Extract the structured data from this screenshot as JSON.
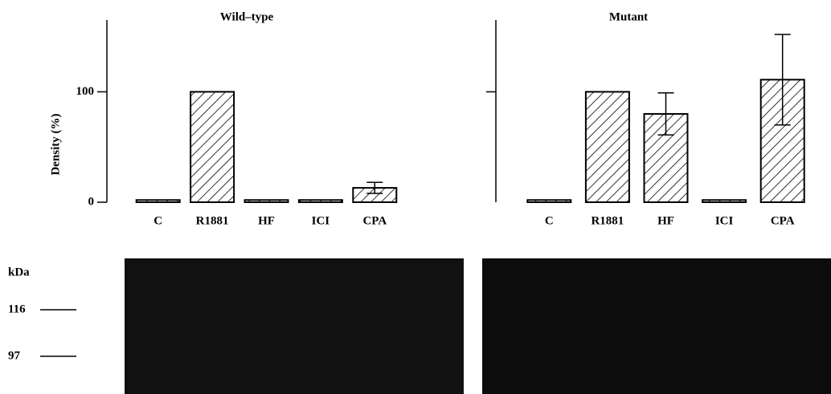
{
  "chart_data": [
    {
      "type": "bar",
      "title": "Wild–type",
      "y_label": "Density (%)",
      "categories": [
        "C",
        "R1881",
        "HF",
        "ICI",
        "CPA"
      ],
      "values": [
        2,
        100,
        2,
        2,
        13
      ],
      "errors": [
        null,
        null,
        null,
        null,
        5
      ],
      "color": "#000000",
      "ylim": [
        0,
        165
      ],
      "yticks": [
        0,
        100
      ],
      "show_ytick_labels": true
    },
    {
      "type": "bar",
      "title": "Mutant",
      "categories": [
        "C",
        "R1881",
        "HF",
        "ICI",
        "CPA"
      ],
      "values": [
        2,
        100,
        80,
        2,
        111
      ],
      "errors": [
        null,
        null,
        19,
        null,
        41
      ],
      "color": "#000000",
      "ylim": [
        0,
        165
      ],
      "yticks": [
        100
      ],
      "show_ytick_labels": false
    }
  ],
  "blot": {
    "unit": "kDa",
    "markers": [
      116,
      97
    ]
  }
}
